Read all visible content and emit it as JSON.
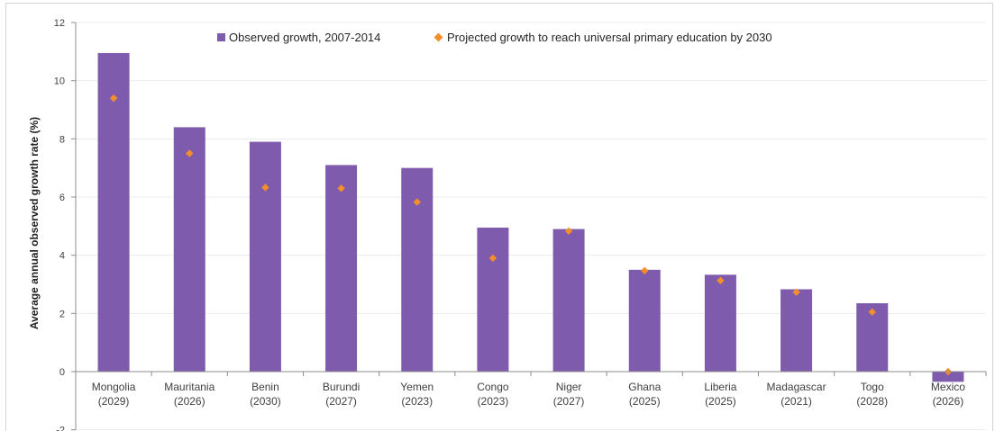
{
  "chart_data": {
    "type": "bar",
    "ylabel": "Average annual observed growth rate (%)",
    "ylim": [
      -2,
      12
    ],
    "yticks": [
      "-2",
      "0",
      "2",
      "4",
      "6",
      "8",
      "10",
      "12"
    ],
    "categories": [
      [
        "Mongolia",
        "(2029)"
      ],
      [
        "Mauritania",
        "(2026)"
      ],
      [
        "Benin",
        "(2030)"
      ],
      [
        "Burundi",
        "(2027)"
      ],
      [
        "Yemen",
        "(2023)"
      ],
      [
        "Congo",
        "(2023)"
      ],
      [
        "Niger",
        "(2027)"
      ],
      [
        "Ghana",
        "(2025)"
      ],
      [
        "Liberia",
        "(2025)"
      ],
      [
        "Madagascar",
        "(2021)"
      ],
      [
        "Togo",
        "(2028)"
      ],
      [
        "Mexico",
        "(2026)"
      ]
    ],
    "series": [
      {
        "name": "Observed growth, 2007-2014",
        "type": "bar",
        "color": "#7f5bad",
        "values": [
          10.95,
          8.4,
          7.9,
          7.1,
          7.0,
          4.95,
          4.9,
          3.5,
          3.33,
          2.83,
          2.35,
          -0.35
        ]
      },
      {
        "name": "Projected growth to reach universal primary education by 2030",
        "type": "marker",
        "color": "#f28e2b",
        "values": [
          9.4,
          7.5,
          6.33,
          6.3,
          5.83,
          3.9,
          4.83,
          3.47,
          3.13,
          2.73,
          2.05,
          0.0
        ]
      }
    ],
    "legend": "top-center",
    "grid": true
  }
}
